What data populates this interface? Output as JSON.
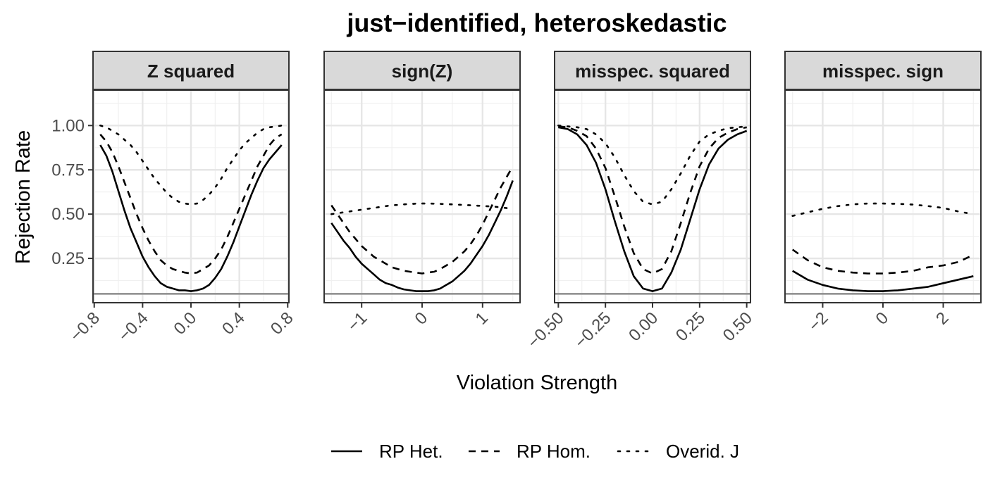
{
  "chart_data": {
    "type": "line",
    "title": "just−identified, heteroskedastic",
    "xlabel": "Violation Strength",
    "ylabel": "Rejection Rate",
    "ylim": [
      0,
      1.2
    ],
    "yticks": [
      0.25,
      0.5,
      0.75,
      1.0
    ],
    "ytick_labels": [
      "0.25",
      "0.50",
      "0.75",
      "1.00"
    ],
    "reference_line": 0.05,
    "grid": true,
    "legend": {
      "position": "bottom",
      "entries": [
        {
          "name": "RP Het.",
          "dash": "solid"
        },
        {
          "name": "RP Hom.",
          "dash": "dashed"
        },
        {
          "name": "Overid. J",
          "dash": "dotted"
        }
      ]
    },
    "panels": [
      {
        "strip": "Z squared",
        "xlim": [
          -0.81,
          0.81
        ],
        "xticks": [
          -0.8,
          -0.4,
          0.0,
          0.4,
          0.8
        ],
        "xtick_labels": [
          "−0.8",
          "−0.4",
          "0.0",
          "0.4",
          "0.8"
        ],
        "series": [
          {
            "name": "RP Het.",
            "x": [
              -0.75,
              -0.7,
              -0.65,
              -0.6,
              -0.55,
              -0.5,
              -0.45,
              -0.4,
              -0.35,
              -0.3,
              -0.25,
              -0.2,
              -0.15,
              -0.1,
              -0.05,
              0,
              0.05,
              0.1,
              0.15,
              0.2,
              0.25,
              0.3,
              0.35,
              0.4,
              0.45,
              0.5,
              0.55,
              0.6,
              0.65,
              0.7,
              0.75
            ],
            "y": [
              0.89,
              0.83,
              0.74,
              0.63,
              0.52,
              0.42,
              0.34,
              0.26,
              0.2,
              0.15,
              0.11,
              0.09,
              0.08,
              0.07,
              0.07,
              0.065,
              0.07,
              0.08,
              0.1,
              0.14,
              0.19,
              0.26,
              0.34,
              0.43,
              0.52,
              0.61,
              0.69,
              0.76,
              0.81,
              0.85,
              0.89
            ]
          },
          {
            "name": "RP Hom.",
            "x": [
              -0.75,
              -0.7,
              -0.65,
              -0.6,
              -0.55,
              -0.5,
              -0.45,
              -0.4,
              -0.35,
              -0.3,
              -0.25,
              -0.2,
              -0.15,
              -0.1,
              -0.05,
              0,
              0.05,
              0.1,
              0.15,
              0.2,
              0.25,
              0.3,
              0.35,
              0.4,
              0.45,
              0.5,
              0.55,
              0.6,
              0.65,
              0.7,
              0.75
            ],
            "y": [
              0.95,
              0.91,
              0.85,
              0.77,
              0.68,
              0.59,
              0.5,
              0.42,
              0.35,
              0.29,
              0.24,
              0.21,
              0.19,
              0.18,
              0.17,
              0.165,
              0.17,
              0.19,
              0.21,
              0.25,
              0.3,
              0.37,
              0.45,
              0.53,
              0.61,
              0.69,
              0.77,
              0.83,
              0.89,
              0.93,
              0.95
            ]
          },
          {
            "name": "Overid. J",
            "x": [
              -0.75,
              -0.7,
              -0.65,
              -0.6,
              -0.55,
              -0.5,
              -0.45,
              -0.4,
              -0.35,
              -0.3,
              -0.25,
              -0.2,
              -0.15,
              -0.1,
              -0.05,
              0,
              0.05,
              0.1,
              0.15,
              0.2,
              0.25,
              0.3,
              0.35,
              0.4,
              0.45,
              0.5,
              0.55,
              0.6,
              0.65,
              0.7,
              0.75
            ],
            "y": [
              1.0,
              0.99,
              0.97,
              0.95,
              0.92,
              0.89,
              0.85,
              0.8,
              0.75,
              0.7,
              0.66,
              0.62,
              0.59,
              0.57,
              0.56,
              0.555,
              0.56,
              0.58,
              0.61,
              0.65,
              0.7,
              0.76,
              0.81,
              0.86,
              0.9,
              0.93,
              0.96,
              0.98,
              0.99,
              0.995,
              1.0
            ]
          }
        ]
      },
      {
        "strip": "sign(Z)",
        "xlim": [
          -1.62,
          1.62
        ],
        "xticks": [
          -1,
          0,
          1
        ],
        "xtick_labels": [
          "−1",
          "0",
          "1"
        ],
        "series": [
          {
            "name": "RP Het.",
            "x": [
              -1.5,
              -1.4,
              -1.3,
              -1.2,
              -1.1,
              -1.0,
              -0.9,
              -0.8,
              -0.7,
              -0.6,
              -0.5,
              -0.4,
              -0.3,
              -0.2,
              -0.1,
              0,
              0.1,
              0.2,
              0.3,
              0.4,
              0.5,
              0.6,
              0.7,
              0.8,
              0.9,
              1.0,
              1.1,
              1.2,
              1.3,
              1.4,
              1.5
            ],
            "y": [
              0.45,
              0.4,
              0.35,
              0.31,
              0.26,
              0.22,
              0.19,
              0.16,
              0.13,
              0.11,
              0.1,
              0.085,
              0.075,
              0.07,
              0.065,
              0.065,
              0.065,
              0.07,
              0.08,
              0.1,
              0.12,
              0.15,
              0.18,
              0.22,
              0.27,
              0.32,
              0.38,
              0.45,
              0.52,
              0.6,
              0.69
            ]
          },
          {
            "name": "RP Hom.",
            "x": [
              -1.5,
              -1.4,
              -1.3,
              -1.2,
              -1.1,
              -1.0,
              -0.9,
              -0.8,
              -0.7,
              -0.6,
              -0.5,
              -0.4,
              -0.3,
              -0.2,
              -0.1,
              0,
              0.1,
              0.2,
              0.3,
              0.4,
              0.5,
              0.6,
              0.7,
              0.8,
              0.9,
              1.0,
              1.1,
              1.2,
              1.3,
              1.4,
              1.5
            ],
            "y": [
              0.55,
              0.5,
              0.45,
              0.4,
              0.36,
              0.32,
              0.29,
              0.26,
              0.24,
              0.22,
              0.2,
              0.19,
              0.18,
              0.175,
              0.17,
              0.165,
              0.17,
              0.175,
              0.19,
              0.21,
              0.23,
              0.26,
              0.29,
              0.33,
              0.38,
              0.44,
              0.51,
              0.58,
              0.65,
              0.71,
              0.77
            ]
          },
          {
            "name": "Overid. J",
            "x": [
              -1.5,
              -1.4,
              -1.3,
              -1.2,
              -1.1,
              -1.0,
              -0.9,
              -0.8,
              -0.7,
              -0.6,
              -0.5,
              -0.4,
              -0.3,
              -0.2,
              -0.1,
              0,
              0.1,
              0.2,
              0.3,
              0.4,
              0.5,
              0.6,
              0.7,
              0.8,
              0.9,
              1.0,
              1.1,
              1.2,
              1.3,
              1.4,
              1.5
            ],
            "y": [
              0.5,
              0.505,
              0.51,
              0.515,
              0.52,
              0.525,
              0.53,
              0.535,
              0.54,
              0.545,
              0.55,
              0.552,
              0.555,
              0.557,
              0.559,
              0.56,
              0.56,
              0.559,
              0.558,
              0.556,
              0.555,
              0.553,
              0.552,
              0.55,
              0.548,
              0.546,
              0.544,
              0.542,
              0.538,
              0.534,
              0.528
            ]
          }
        ]
      },
      {
        "strip": "misspec. squared",
        "xlim": [
          -0.52,
          0.52
        ],
        "xticks": [
          -0.5,
          -0.25,
          0.0,
          0.25,
          0.5
        ],
        "xtick_labels": [
          "−0.50",
          "−0.25",
          "0.00",
          "0.25",
          "0.50"
        ],
        "series": [
          {
            "name": "RP Het.",
            "x": [
              -0.5,
              -0.45,
              -0.4,
              -0.35,
              -0.3,
              -0.25,
              -0.2,
              -0.15,
              -0.1,
              -0.05,
              0,
              0.05,
              0.1,
              0.15,
              0.2,
              0.25,
              0.3,
              0.35,
              0.4,
              0.45,
              0.5
            ],
            "y": [
              0.99,
              0.98,
              0.95,
              0.89,
              0.79,
              0.64,
              0.46,
              0.29,
              0.15,
              0.08,
              0.065,
              0.08,
              0.17,
              0.3,
              0.47,
              0.64,
              0.78,
              0.87,
              0.92,
              0.95,
              0.97
            ]
          },
          {
            "name": "RP Hom.",
            "x": [
              -0.5,
              -0.45,
              -0.4,
              -0.35,
              -0.3,
              -0.25,
              -0.2,
              -0.15,
              -0.1,
              -0.05,
              0,
              0.05,
              0.1,
              0.15,
              0.2,
              0.25,
              0.3,
              0.35,
              0.4,
              0.45,
              0.5
            ],
            "y": [
              0.995,
              0.99,
              0.97,
              0.94,
              0.87,
              0.76,
              0.6,
              0.43,
              0.28,
              0.19,
              0.165,
              0.19,
              0.29,
              0.45,
              0.62,
              0.77,
              0.87,
              0.93,
              0.96,
              0.98,
              0.99
            ]
          },
          {
            "name": "Overid. J",
            "x": [
              -0.5,
              -0.45,
              -0.4,
              -0.35,
              -0.3,
              -0.25,
              -0.2,
              -0.15,
              -0.1,
              -0.05,
              0,
              0.05,
              0.1,
              0.15,
              0.2,
              0.25,
              0.3,
              0.35,
              0.4,
              0.45,
              0.5
            ],
            "y": [
              1.0,
              0.995,
              0.99,
              0.98,
              0.95,
              0.9,
              0.82,
              0.72,
              0.63,
              0.57,
              0.555,
              0.57,
              0.64,
              0.73,
              0.83,
              0.91,
              0.95,
              0.97,
              0.985,
              0.99,
              0.995
            ]
          }
        ]
      },
      {
        "strip": "misspec. sign",
        "xlim": [
          -3.25,
          3.25
        ],
        "xticks": [
          -2,
          0,
          2
        ],
        "xtick_labels": [
          "−2",
          "0",
          "2"
        ],
        "series": [
          {
            "name": "RP Het.",
            "x": [
              -3,
              -2.5,
              -2,
              -1.5,
              -1,
              -0.5,
              0,
              0.5,
              1,
              1.5,
              2,
              2.5,
              3
            ],
            "y": [
              0.18,
              0.13,
              0.1,
              0.08,
              0.07,
              0.065,
              0.065,
              0.07,
              0.08,
              0.09,
              0.11,
              0.13,
              0.15
            ]
          },
          {
            "name": "RP Hom.",
            "x": [
              -3,
              -2.5,
              -2,
              -1.5,
              -1,
              -0.5,
              0,
              0.5,
              1,
              1.5,
              2,
              2.5,
              3
            ],
            "y": [
              0.3,
              0.24,
              0.2,
              0.18,
              0.17,
              0.165,
              0.165,
              0.17,
              0.18,
              0.2,
              0.21,
              0.23,
              0.27
            ]
          },
          {
            "name": "Overid. J",
            "x": [
              -3,
              -2.5,
              -2,
              -1.5,
              -1,
              -0.5,
              0,
              0.5,
              1,
              1.5,
              2,
              2.5,
              3
            ],
            "y": [
              0.49,
              0.51,
              0.53,
              0.545,
              0.555,
              0.56,
              0.56,
              0.558,
              0.554,
              0.545,
              0.535,
              0.515,
              0.5
            ]
          }
        ]
      }
    ]
  }
}
